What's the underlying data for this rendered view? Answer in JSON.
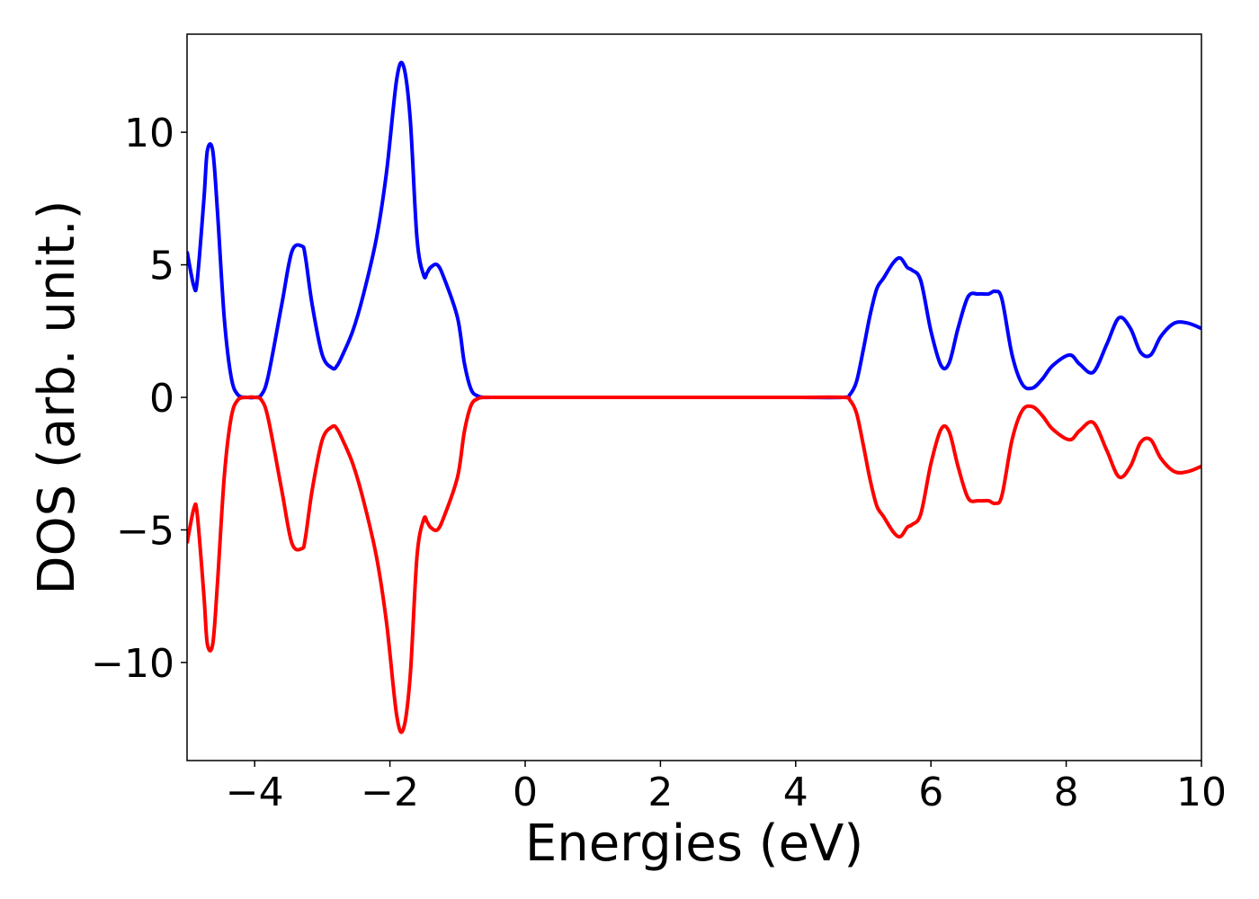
{
  "chart_data": {
    "type": "line",
    "title": "",
    "xlabel": "Energies (eV)",
    "ylabel": "DOS (arb. unit.)",
    "xlim": [
      -5,
      10
    ],
    "ylim": [
      -13.7,
      13.7
    ],
    "xticks": [
      -4,
      -2,
      0,
      2,
      4,
      6,
      8,
      10
    ],
    "yticks": [
      -10,
      -5,
      0,
      5,
      10
    ],
    "xtick_labels": [
      "−4",
      "−2",
      "0",
      "2",
      "4",
      "6",
      "8",
      "10"
    ],
    "ytick_labels": [
      "−10",
      "−5",
      "0",
      "5",
      "10"
    ],
    "grid": false,
    "legend": "none",
    "series": [
      {
        "color": "#0000ff",
        "x": [
          -5.0,
          -4.9,
          -4.85,
          -4.75,
          -4.7,
          -4.62,
          -4.55,
          -4.45,
          -4.35,
          -4.25,
          -4.1,
          -4.0,
          -3.9,
          -3.8,
          -3.6,
          -3.45,
          -3.3,
          -3.25,
          -3.15,
          -3.0,
          -2.85,
          -2.78,
          -2.7,
          -2.55,
          -2.4,
          -2.2,
          -2.05,
          -1.9,
          -1.8,
          -1.7,
          -1.6,
          -1.5,
          -1.45,
          -1.4,
          -1.3,
          -1.2,
          -1.0,
          -0.9,
          -0.8,
          -0.7,
          -0.6,
          -0.5,
          0.0,
          1.0,
          2.0,
          3.0,
          4.0,
          4.7,
          4.8,
          4.9,
          5.0,
          5.1,
          5.2,
          5.3,
          5.45,
          5.55,
          5.65,
          5.72,
          5.85,
          6.0,
          6.15,
          6.27,
          6.4,
          6.55,
          6.7,
          6.85,
          6.95,
          7.05,
          7.2,
          7.35,
          7.5,
          7.65,
          7.8,
          8.05,
          8.2,
          8.4,
          8.6,
          8.78,
          8.95,
          9.1,
          9.25,
          9.4,
          9.6,
          9.8,
          10.0
        ],
        "y": [
          5.5,
          4.2,
          4.4,
          7.5,
          9.3,
          9.3,
          7.0,
          3.0,
          0.8,
          0.1,
          0.0,
          0.0,
          0.1,
          0.8,
          3.5,
          5.5,
          5.7,
          5.3,
          3.5,
          1.6,
          1.1,
          1.2,
          1.6,
          2.5,
          3.8,
          6.0,
          8.5,
          12.0,
          12.5,
          10.5,
          6.0,
          4.6,
          4.7,
          4.9,
          5.0,
          4.5,
          3.0,
          1.3,
          0.3,
          0.05,
          0.0,
          0.0,
          0.0,
          0.0,
          0.0,
          0.0,
          0.0,
          0.0,
          0.1,
          0.6,
          1.8,
          3.1,
          4.1,
          4.5,
          5.1,
          5.25,
          4.9,
          4.8,
          4.4,
          2.5,
          1.2,
          1.3,
          2.6,
          3.8,
          3.9,
          3.9,
          4.0,
          3.7,
          1.6,
          0.5,
          0.35,
          0.7,
          1.2,
          1.6,
          1.25,
          0.95,
          2.0,
          3.0,
          2.6,
          1.7,
          1.6,
          2.3,
          2.8,
          2.8,
          2.6
        ]
      },
      {
        "color": "#ff0000",
        "x": [
          -5.0,
          -4.9,
          -4.85,
          -4.75,
          -4.7,
          -4.62,
          -4.55,
          -4.45,
          -4.35,
          -4.25,
          -4.1,
          -4.0,
          -3.9,
          -3.8,
          -3.6,
          -3.45,
          -3.3,
          -3.25,
          -3.15,
          -3.0,
          -2.85,
          -2.78,
          -2.7,
          -2.55,
          -2.4,
          -2.2,
          -2.05,
          -1.9,
          -1.8,
          -1.7,
          -1.6,
          -1.5,
          -1.45,
          -1.4,
          -1.3,
          -1.2,
          -1.0,
          -0.9,
          -0.8,
          -0.7,
          -0.6,
          -0.5,
          0.0,
          1.0,
          2.0,
          3.0,
          4.0,
          4.7,
          4.8,
          4.9,
          5.0,
          5.1,
          5.2,
          5.3,
          5.45,
          5.55,
          5.65,
          5.72,
          5.85,
          6.0,
          6.15,
          6.27,
          6.4,
          6.55,
          6.7,
          6.85,
          6.95,
          7.05,
          7.2,
          7.35,
          7.5,
          7.65,
          7.8,
          8.05,
          8.2,
          8.4,
          8.6,
          8.78,
          8.95,
          9.1,
          9.25,
          9.4,
          9.6,
          9.8,
          10.0
        ],
        "y": [
          -5.5,
          -4.2,
          -4.4,
          -7.5,
          -9.3,
          -9.3,
          -7.0,
          -3.0,
          -0.8,
          -0.1,
          0.0,
          0.0,
          -0.1,
          -0.8,
          -3.5,
          -5.5,
          -5.7,
          -5.3,
          -3.5,
          -1.6,
          -1.1,
          -1.2,
          -1.6,
          -2.5,
          -3.8,
          -6.0,
          -8.5,
          -12.0,
          -12.5,
          -10.5,
          -6.0,
          -4.6,
          -4.7,
          -4.9,
          -5.0,
          -4.5,
          -3.0,
          -1.3,
          -0.3,
          -0.05,
          0.0,
          0.0,
          0.0,
          0.0,
          0.0,
          0.0,
          0.0,
          0.0,
          -0.1,
          -0.6,
          -1.8,
          -3.1,
          -4.1,
          -4.5,
          -5.1,
          -5.25,
          -4.9,
          -4.8,
          -4.4,
          -2.5,
          -1.2,
          -1.3,
          -2.6,
          -3.8,
          -3.9,
          -3.9,
          -4.0,
          -3.7,
          -1.6,
          -0.5,
          -0.35,
          -0.7,
          -1.2,
          -1.6,
          -1.25,
          -0.95,
          -2.0,
          -3.0,
          -2.6,
          -1.7,
          -1.6,
          -2.3,
          -2.8,
          -2.8,
          -2.6
        ]
      }
    ]
  }
}
